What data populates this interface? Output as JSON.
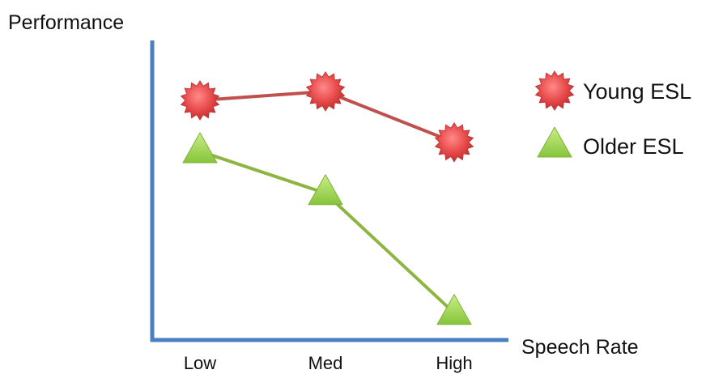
{
  "chart_data": {
    "type": "line",
    "title": "",
    "xlabel": "Speech Rate",
    "ylabel": "Performance",
    "categories": [
      "Low",
      "Med",
      "High"
    ],
    "ylim": [
      0,
      10
    ],
    "grid": false,
    "legend_position": "top-right",
    "axis_color": "#4a7fc1",
    "series": [
      {
        "name": "Young ESL",
        "values": [
          8.0,
          8.3,
          6.6
        ],
        "color": "#c0504d",
        "marker": "star-burst",
        "marker_color": "#e84a4a"
      },
      {
        "name": "Older ESL",
        "values": [
          6.3,
          4.9,
          0.9
        ],
        "color": "#8db542",
        "marker": "triangle",
        "marker_color": "#9bd24b"
      }
    ]
  }
}
